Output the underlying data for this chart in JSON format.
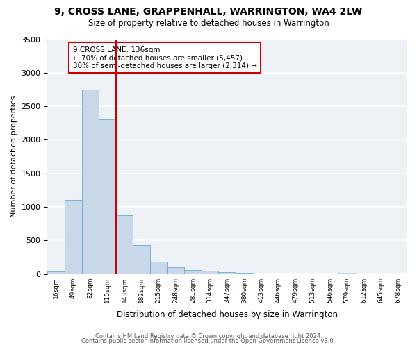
{
  "title": "9, CROSS LANE, GRAPPENHALL, WARRINGTON, WA4 2LW",
  "subtitle": "Size of property relative to detached houses in Warrington",
  "xlabel": "Distribution of detached houses by size in Warrington",
  "ylabel": "Number of detached properties",
  "bar_values": [
    40,
    1100,
    2750,
    2300,
    880,
    430,
    180,
    100,
    55,
    50,
    30,
    10,
    0,
    0,
    0,
    0,
    0,
    15,
    0,
    0,
    0
  ],
  "bin_labels": [
    "16sqm",
    "49sqm",
    "82sqm",
    "115sqm",
    "148sqm",
    "182sqm",
    "215sqm",
    "248sqm",
    "281sqm",
    "314sqm",
    "347sqm",
    "380sqm",
    "413sqm",
    "446sqm",
    "479sqm",
    "513sqm",
    "546sqm",
    "579sqm",
    "612sqm",
    "645sqm",
    "678sqm"
  ],
  "bar_color": "#c8d8e8",
  "bar_edge_color": "#6baad0",
  "vline_color": "#cc0000",
  "vline_pos": 3.5,
  "annotation_text": "9 CROSS LANE: 136sqm\n← 70% of detached houses are smaller (5,457)\n30% of semi-detached houses are larger (2,314) →",
  "annotation_box_color": "#ffffff",
  "annotation_box_edge": "#cc0000",
  "ylim": [
    0,
    3500
  ],
  "yticks": [
    0,
    500,
    1000,
    1500,
    2000,
    2500,
    3000,
    3500
  ],
  "footer1": "Contains HM Land Registry data © Crown copyright and database right 2024.",
  "footer2": "Contains public sector information licensed under the Open Government Licence v3.0.",
  "bg_color": "#eef2f7",
  "grid_color": "#ffffff",
  "fig_bg": "#ffffff"
}
